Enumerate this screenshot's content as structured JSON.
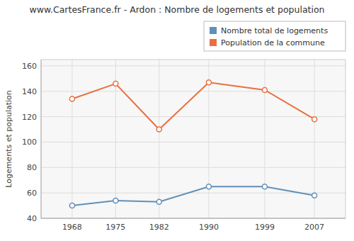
{
  "chart_data": {
    "type": "line",
    "title": "www.CartesFrance.fr - Ardon : Nombre de logements et population",
    "y_label": "Logements et population",
    "x": [
      1968,
      1975,
      1982,
      1990,
      1999,
      2007
    ],
    "series": [
      {
        "name": "Nombre total de logements",
        "color": "#6090b8",
        "marker": "circle",
        "values": [
          50,
          54,
          53,
          65,
          65,
          58
        ]
      },
      {
        "name": "Population de la commune",
        "color": "#e87040",
        "marker": "circle",
        "values": [
          134,
          146,
          110,
          147,
          141,
          118
        ]
      }
    ],
    "xlim": [
      1963,
      2012
    ],
    "xticks": [
      1968,
      1975,
      1982,
      1990,
      1999,
      2007
    ],
    "ylim": [
      40,
      165
    ],
    "yticks": [
      40,
      60,
      80,
      100,
      120,
      140,
      160
    ],
    "grid": true,
    "legend": "upper right"
  }
}
